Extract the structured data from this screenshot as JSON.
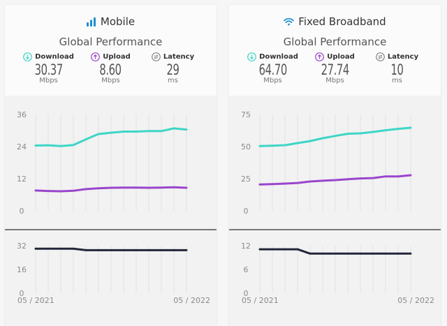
{
  "cards": [
    {
      "title": "Mobile",
      "icon": "signal-bars-icon",
      "subtitle": "Global Performance",
      "metrics": [
        {
          "label": "Download",
          "icon": "download-arrow-icon",
          "value": "30.37",
          "unit": "Mbps",
          "color": "#3dd6c6"
        },
        {
          "label": "Upload",
          "icon": "upload-arrow-icon",
          "value": "8.60",
          "unit": "Mbps",
          "color": "#9a45cc"
        },
        {
          "label": "Latency",
          "icon": "latency-icon",
          "value": "29",
          "unit": "ms",
          "color": "#888888"
        }
      ]
    },
    {
      "title": "Fixed Broadband",
      "icon": "wifi-icon",
      "subtitle": "Global Performance",
      "metrics": [
        {
          "label": "Download",
          "icon": "download-arrow-icon",
          "value": "64.70",
          "unit": "Mbps",
          "color": "#3dd6c6"
        },
        {
          "label": "Upload",
          "icon": "upload-arrow-icon",
          "value": "27.74",
          "unit": "Mbps",
          "color": "#9a45cc"
        },
        {
          "label": "Latency",
          "icon": "latency-icon",
          "value": "10",
          "unit": "ms",
          "color": "#888888"
        }
      ]
    }
  ],
  "colors": {
    "download": "#3dd6c6",
    "upload": "#9a45cc",
    "latency": "#232639",
    "icon_blue": "#1f8fd1"
  },
  "chart_data": [
    {
      "type": "line",
      "title": "Mobile speeds",
      "x_start_label": "05 / 2021",
      "x_end_label": "05 / 2022",
      "ylim": [
        0,
        36
      ],
      "yticks": [
        0,
        12,
        24,
        36
      ],
      "grid": "vertical",
      "series": [
        {
          "name": "Download",
          "color": "#3dd6c6",
          "values": [
            24.4,
            24.5,
            24.2,
            24.6,
            26.7,
            28.7,
            29.2,
            29.6,
            29.6,
            29.8,
            29.8,
            30.8,
            30.37
          ]
        },
        {
          "name": "Upload",
          "color": "#9a45cc",
          "values": [
            7.6,
            7.4,
            7.3,
            7.5,
            8.1,
            8.4,
            8.6,
            8.7,
            8.7,
            8.6,
            8.7,
            8.8,
            8.6
          ]
        }
      ]
    },
    {
      "type": "line",
      "title": "Mobile latency",
      "x_start_label": "05 / 2021",
      "x_end_label": "05 / 2022",
      "ylim": [
        0,
        32
      ],
      "yticks": [
        0,
        16,
        32
      ],
      "grid": "vertical",
      "series": [
        {
          "name": "Latency",
          "color": "#232639",
          "values": [
            30,
            30,
            30,
            30,
            29,
            29,
            29,
            29,
            29,
            29,
            29,
            29,
            29
          ]
        }
      ]
    },
    {
      "type": "line",
      "title": "Fixed Broadband speeds",
      "x_start_label": "05 / 2021",
      "x_end_label": "05 / 2022",
      "ylim": [
        0,
        75
      ],
      "yticks": [
        0,
        25,
        50,
        75
      ],
      "grid": "vertical",
      "series": [
        {
          "name": "Download",
          "color": "#3dd6c6",
          "values": [
            50.4,
            50.7,
            51.1,
            52.7,
            54.3,
            56.5,
            58.3,
            60.0,
            60.3,
            61.4,
            62.7,
            63.8,
            64.7
          ]
        },
        {
          "name": "Upload",
          "color": "#9a45cc",
          "values": [
            20.5,
            20.8,
            21.2,
            21.7,
            22.8,
            23.4,
            23.9,
            24.6,
            25.2,
            25.5,
            26.8,
            26.8,
            27.74
          ]
        }
      ]
    },
    {
      "type": "line",
      "title": "Fixed Broadband latency",
      "x_start_label": "05 / 2021",
      "x_end_label": "05 / 2022",
      "ylim": [
        0,
        12
      ],
      "yticks": [
        0,
        6,
        12
      ],
      "grid": "vertical",
      "series": [
        {
          "name": "Latency",
          "color": "#232639",
          "values": [
            11.1,
            11.1,
            11.1,
            11.1,
            10,
            10,
            10,
            10,
            10,
            10,
            10,
            10,
            10
          ]
        }
      ]
    }
  ]
}
